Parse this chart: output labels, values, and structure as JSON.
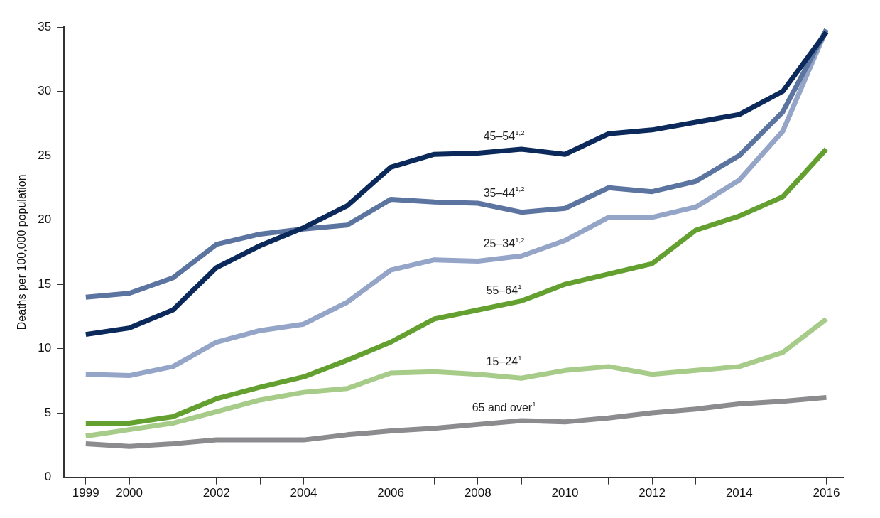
{
  "chart_data": {
    "type": "line",
    "ylabel": "Deaths per 100,000 population",
    "x": [
      1999,
      2000,
      2001,
      2002,
      2003,
      2004,
      2005,
      2006,
      2007,
      2008,
      2009,
      2010,
      2011,
      2012,
      2013,
      2014,
      2015,
      2016
    ],
    "series": [
      {
        "name": "45–54$^{1,2}$",
        "color": "#0b2a5b",
        "values": [
          11.1,
          11.6,
          13.0,
          16.3,
          18.0,
          19.4,
          21.1,
          24.1,
          25.1,
          25.2,
          25.5,
          25.1,
          26.7,
          27.0,
          27.6,
          28.2,
          30.0,
          34.6
        ]
      },
      {
        "name": "35–44$^{1,2}$",
        "color": "#5b74a0",
        "values": [
          14.0,
          14.3,
          15.5,
          18.1,
          18.9,
          19.3,
          19.6,
          21.6,
          21.4,
          21.3,
          20.6,
          20.9,
          22.5,
          22.2,
          23.0,
          25.0,
          28.4,
          34.8
        ]
      },
      {
        "name": "25–34$^{1,2}$",
        "color": "#95a5c8",
        "values": [
          8.0,
          7.9,
          8.6,
          10.5,
          11.4,
          11.9,
          13.6,
          16.1,
          16.9,
          16.8,
          17.2,
          18.4,
          20.2,
          20.2,
          21.0,
          23.1,
          26.9,
          34.8
        ]
      },
      {
        "name": "55–64$^{1}$",
        "color": "#63a030",
        "values": [
          4.2,
          4.2,
          4.7,
          6.1,
          7.0,
          7.8,
          9.1,
          10.5,
          12.3,
          13.0,
          13.7,
          15.0,
          15.8,
          16.6,
          19.2,
          20.3,
          21.8,
          25.5
        ]
      },
      {
        "name": "15–24$^{1}$",
        "color": "#a7cc8a",
        "values": [
          3.2,
          3.7,
          4.2,
          5.1,
          6.0,
          6.6,
          6.9,
          8.1,
          8.2,
          8.0,
          7.7,
          8.3,
          8.6,
          8.0,
          8.3,
          8.6,
          9.7,
          12.3
        ]
      },
      {
        "name": "65 and over$^{1}$",
        "color": "#8c8c8f",
        "values": [
          2.6,
          2.4,
          2.6,
          2.9,
          2.9,
          2.9,
          3.3,
          3.6,
          3.8,
          4.1,
          4.4,
          4.3,
          4.6,
          5.0,
          5.3,
          5.7,
          5.9,
          6.2
        ]
      }
    ],
    "xlim": [
      1998.5,
      2016.4
    ],
    "xticks": [
      1999,
      2000,
      {
        "value": 2001,
        "label": null
      },
      2002,
      {
        "value": 2003,
        "label": null
      },
      2004,
      {
        "value": 2005,
        "label": null
      },
      2006,
      {
        "value": 2007,
        "label": null
      },
      2008,
      {
        "value": 2009,
        "label": null
      },
      2010,
      {
        "value": 2011,
        "label": null
      },
      2012,
      {
        "value": 2013,
        "label": null
      },
      2014,
      {
        "value": 2015,
        "label": null
      },
      2016
    ],
    "ylim": [
      0,
      35
    ],
    "yticks": [
      0,
      5,
      10,
      15,
      20,
      25,
      30,
      35
    ],
    "grid": false,
    "legend": false,
    "marker": "none",
    "line_style": "solid"
  }
}
